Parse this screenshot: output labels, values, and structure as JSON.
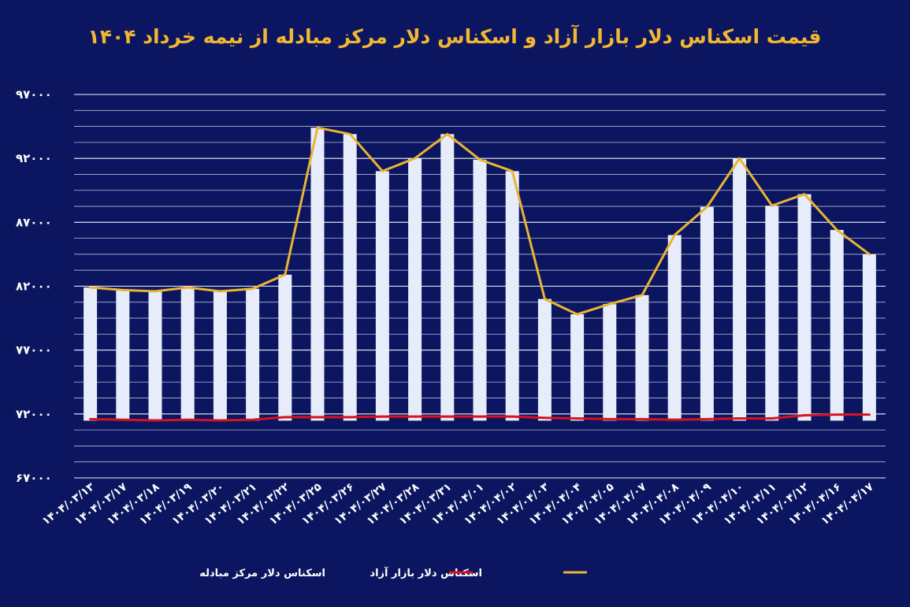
{
  "colors": {
    "background": "#0c1660",
    "title": "#f2b630",
    "bars": "#e6ecf9",
    "grid": "#ffffff",
    "free_market_line": "#eab433",
    "exchange_center_line": "#d8121f",
    "text": "#ffffff"
  },
  "chart_data": {
    "type": "bar",
    "title": "قیمت اسکناس دلار بازار آزاد و اسکناس دلار مرکز مبادله از نیمه خرداد ۱۴۰۴",
    "xlabel": "",
    "ylabel": "",
    "ylim": [
      67000,
      97000
    ],
    "y_ticks": [
      67000,
      72000,
      77000,
      82000,
      87000,
      92000,
      97000
    ],
    "y_tick_labels": [
      "۶۷۰۰۰",
      "۷۲۰۰۰",
      "۷۷۰۰۰",
      "۸۲۰۰۰",
      "۸۷۰۰۰",
      "۹۲۰۰۰",
      "۹۷۰۰۰"
    ],
    "grid": true,
    "legend_position": "bottom",
    "categories": [
      "۱۴۰۴/۰۳/۱۳",
      "۱۴۰۴/۰۳/۱۷",
      "۱۴۰۴/۰۳/۱۸",
      "۱۴۰۴/۰۳/۱۹",
      "۱۴۰۴/۰۳/۲۰",
      "۱۴۰۴/۰۳/۲۱",
      "۱۴۰۴/۰۳/۲۲",
      "۱۴۰۴/۰۳/۲۵",
      "۱۴۰۴/۰۳/۲۶",
      "۱۴۰۴/۰۳/۲۷",
      "۱۴۰۴/۰۳/۲۸",
      "۱۴۰۴/۰۳/۳۱",
      "۱۴۰۴/۰۴/۰۱",
      "۱۴۰۴/۰۴/۰۲",
      "۱۴۰۴/۰۴/۰۳",
      "۱۴۰۴/۰۴/۰۴",
      "۱۴۰۴/۰۴/۰۵",
      "۱۴۰۴/۰۴/۰۷",
      "۱۴۰۴/۰۴/۰۸",
      "۱۴۰۴/۰۴/۰۹",
      "۱۴۰۴/۰۴/۱۰",
      "۱۴۰۴/۰۴/۱۱",
      "۱۴۰۴/۰۴/۱۲",
      "۱۴۰۴/۰۴/۱۶",
      "۱۴۰۴/۰۴/۱۷"
    ],
    "series": [
      {
        "name": "اسکناس دلار بازار آزاد",
        "display": "bar+line",
        "values": [
          81900,
          81700,
          81600,
          81900,
          81600,
          81800,
          82900,
          94400,
          93900,
          91000,
          92000,
          93900,
          91900,
          91000,
          81000,
          79800,
          80600,
          81300,
          86000,
          88200,
          92000,
          88300,
          89200,
          86400,
          84500
        ]
      },
      {
        "name": "اسکناس دلار مرکز مبادله",
        "display": "line",
        "values": [
          71600,
          71550,
          71500,
          71550,
          71500,
          71550,
          71750,
          71750,
          71750,
          71800,
          71800,
          71800,
          71800,
          71800,
          71700,
          71650,
          71600,
          71600,
          71550,
          71600,
          71650,
          71650,
          71900,
          71950,
          71950
        ]
      }
    ]
  }
}
